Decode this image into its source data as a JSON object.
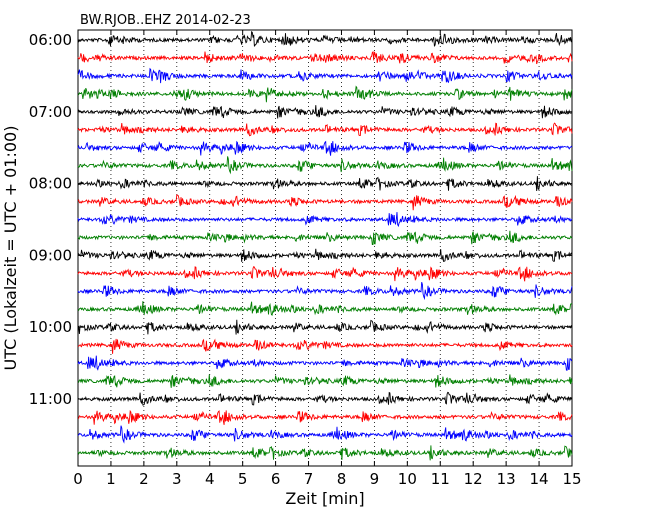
{
  "chart_data": {
    "type": "line",
    "title": "BW.RJOB..EHZ 2014-02-23",
    "xlabel": "Zeit  [min]",
    "ylabel": "UTC (Lokalzeit = UTC + 01:00)",
    "xlim": [
      0,
      15
    ],
    "x_ticks": [
      0,
      1,
      2,
      3,
      4,
      5,
      6,
      7,
      8,
      9,
      10,
      11,
      12,
      13,
      14,
      15
    ],
    "x_tick_labels": [
      "0",
      "1",
      "2",
      "3",
      "4",
      "5",
      "6",
      "7",
      "8",
      "9",
      "10",
      "11",
      "12",
      "13",
      "14",
      "15"
    ],
    "y_tick_labels": [
      "06:00",
      "07:00",
      "08:00",
      "09:00",
      "10:00",
      "11:00"
    ],
    "traces_per_hour": 4,
    "trace_count": 24,
    "trace_colors": [
      "#000000",
      "#ff0000",
      "#0000ff",
      "#007f00"
    ],
    "grid": "vertical dotted"
  }
}
